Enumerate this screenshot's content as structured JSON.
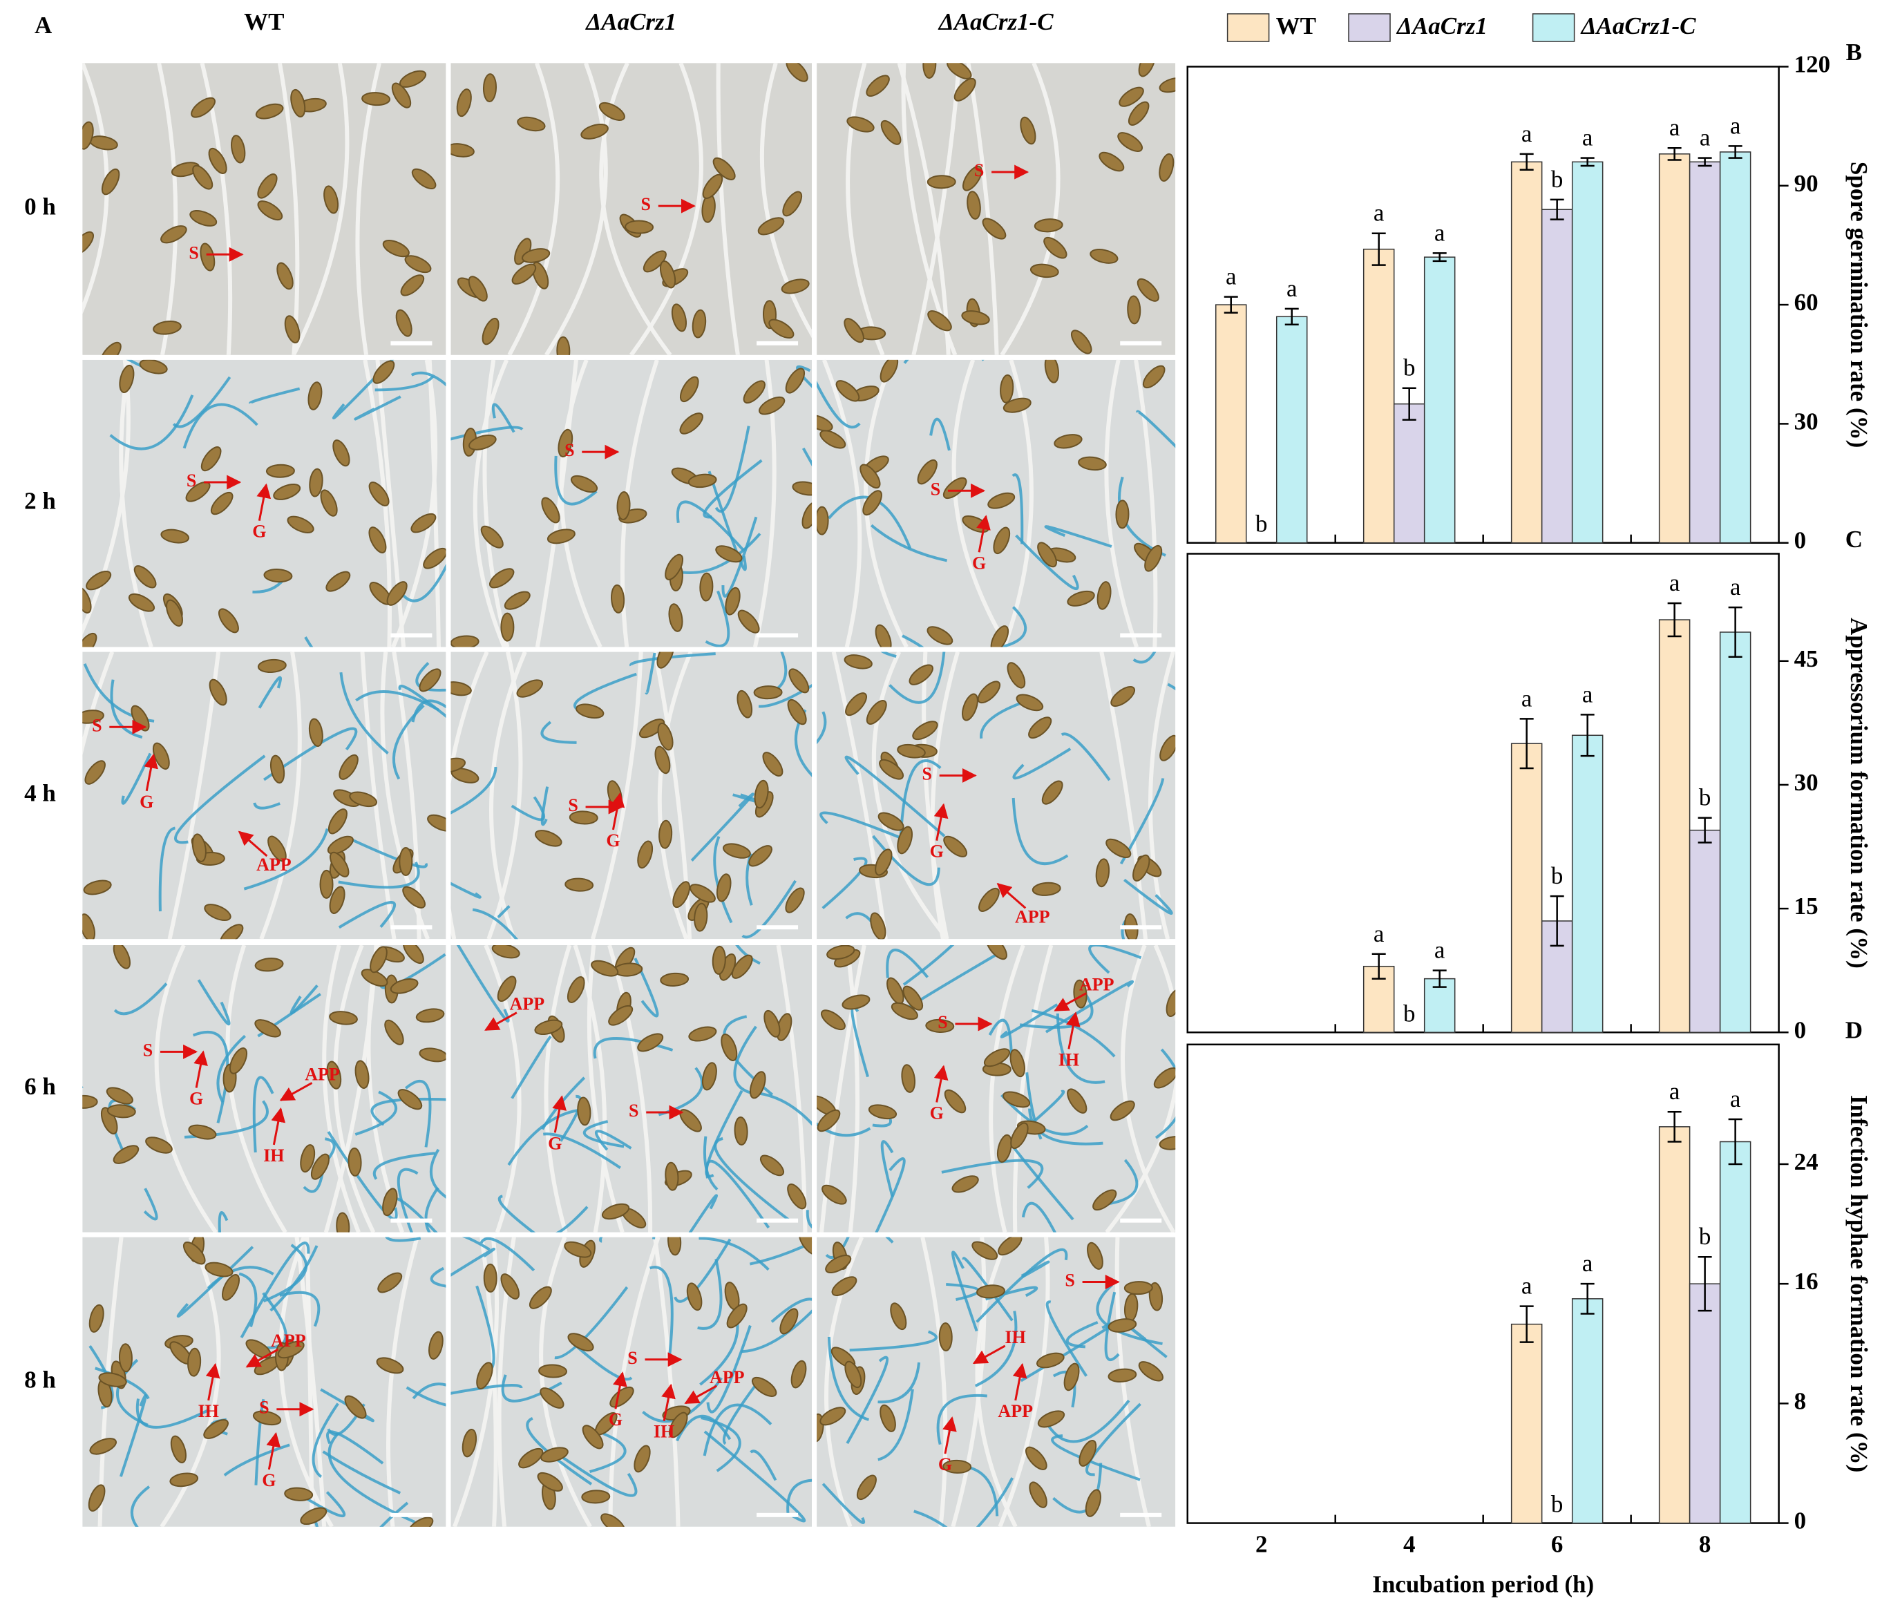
{
  "micrographs": {
    "panel": "A",
    "columns": [
      "WT",
      "ΔAaCrz1",
      "ΔAaCrz1-C"
    ],
    "rows": [
      "0 h",
      "2 h",
      "4 h",
      "6 h",
      "8 h"
    ],
    "labels": [
      [
        [
          "S"
        ],
        [
          "S"
        ],
        [
          "S"
        ]
      ],
      [
        [
          "S",
          "G"
        ],
        [
          "S"
        ],
        [
          "S",
          "G"
        ]
      ],
      [
        [
          "S",
          "G",
          "APP"
        ],
        [
          "S",
          "G"
        ],
        [
          "S",
          "G",
          "APP"
        ]
      ],
      [
        [
          "S",
          "G",
          "IH",
          "APP"
        ],
        [
          "APP",
          "S",
          "G"
        ],
        [
          "S",
          "G",
          "IH",
          "APP"
        ]
      ],
      [
        [
          "IH",
          "APP",
          "S",
          "G"
        ],
        [
          "S",
          "G",
          "IH",
          "APP"
        ],
        [
          "S",
          "IH",
          "APP",
          "G"
        ]
      ]
    ]
  },
  "chart_data": [
    {
      "type": "bar",
      "panel": "B",
      "y_label": "Spore germination rate (%)",
      "ylim": [
        0,
        120
      ],
      "yticks": [
        0,
        30,
        60,
        90,
        120
      ],
      "series": [
        {
          "name": "WT",
          "color": "#fde5c2",
          "values": [
            60,
            74,
            96,
            98
          ],
          "errors": [
            2,
            4,
            2,
            1.5
          ],
          "letters": [
            "a",
            "a",
            "a",
            "a"
          ]
        },
        {
          "name": "ΔAaCrz1",
          "color": "#d9d4ea",
          "values": [
            0,
            35,
            84,
            96
          ],
          "errors": [
            0,
            4,
            2.5,
            1
          ],
          "letters": [
            "b",
            "b",
            "b",
            "a"
          ]
        },
        {
          "name": "ΔAaCrz1-C",
          "color": "#c0eff3",
          "values": [
            57,
            72,
            96,
            98.5
          ],
          "errors": [
            2,
            1,
            1,
            1.5
          ],
          "letters": [
            "a",
            "a",
            "a",
            "a"
          ]
        }
      ]
    },
    {
      "type": "bar",
      "panel": "C",
      "y_label": "Appressorium formation rate (%)",
      "ylim": [
        0,
        58
      ],
      "yticks": [
        0,
        15,
        30,
        45
      ],
      "series": [
        {
          "color": "#fde5c2",
          "values": [
            0,
            8,
            35,
            50
          ],
          "errors": [
            0,
            1.5,
            3,
            2
          ],
          "letters": [
            null,
            "a",
            "a",
            "a"
          ]
        },
        {
          "color": "#d9d4ea",
          "values": [
            0,
            0,
            13.5,
            24.5
          ],
          "errors": [
            0,
            0,
            3,
            1.5
          ],
          "letters": [
            null,
            "b",
            "b",
            "b"
          ]
        },
        {
          "color": "#c0eff3",
          "values": [
            0,
            6.5,
            36,
            48.5
          ],
          "errors": [
            0,
            1,
            2.5,
            3
          ],
          "letters": [
            null,
            "a",
            "a",
            "a"
          ]
        }
      ]
    },
    {
      "type": "bar",
      "panel": "D",
      "y_label": "Infection hyphae formation rate (%)",
      "x_label": "Incubation period (h)",
      "categories": [
        "2",
        "4",
        "6",
        "8"
      ],
      "ylim": [
        0,
        32
      ],
      "yticks": [
        0,
        8,
        16,
        24
      ],
      "series": [
        {
          "color": "#fde5c2",
          "values": [
            0,
            0,
            13.3,
            26.5
          ],
          "errors": [
            0,
            0,
            1.2,
            1
          ],
          "letters": [
            null,
            null,
            "a",
            "a"
          ]
        },
        {
          "color": "#d9d4ea",
          "values": [
            0,
            0,
            0,
            16
          ],
          "errors": [
            0,
            0,
            0,
            1.8
          ],
          "letters": [
            null,
            null,
            "b",
            "b"
          ]
        },
        {
          "color": "#c0eff3",
          "values": [
            0,
            0,
            15,
            25.5
          ],
          "errors": [
            0,
            0,
            1,
            1.5
          ],
          "letters": [
            null,
            null,
            "a",
            "a"
          ]
        }
      ]
    }
  ]
}
